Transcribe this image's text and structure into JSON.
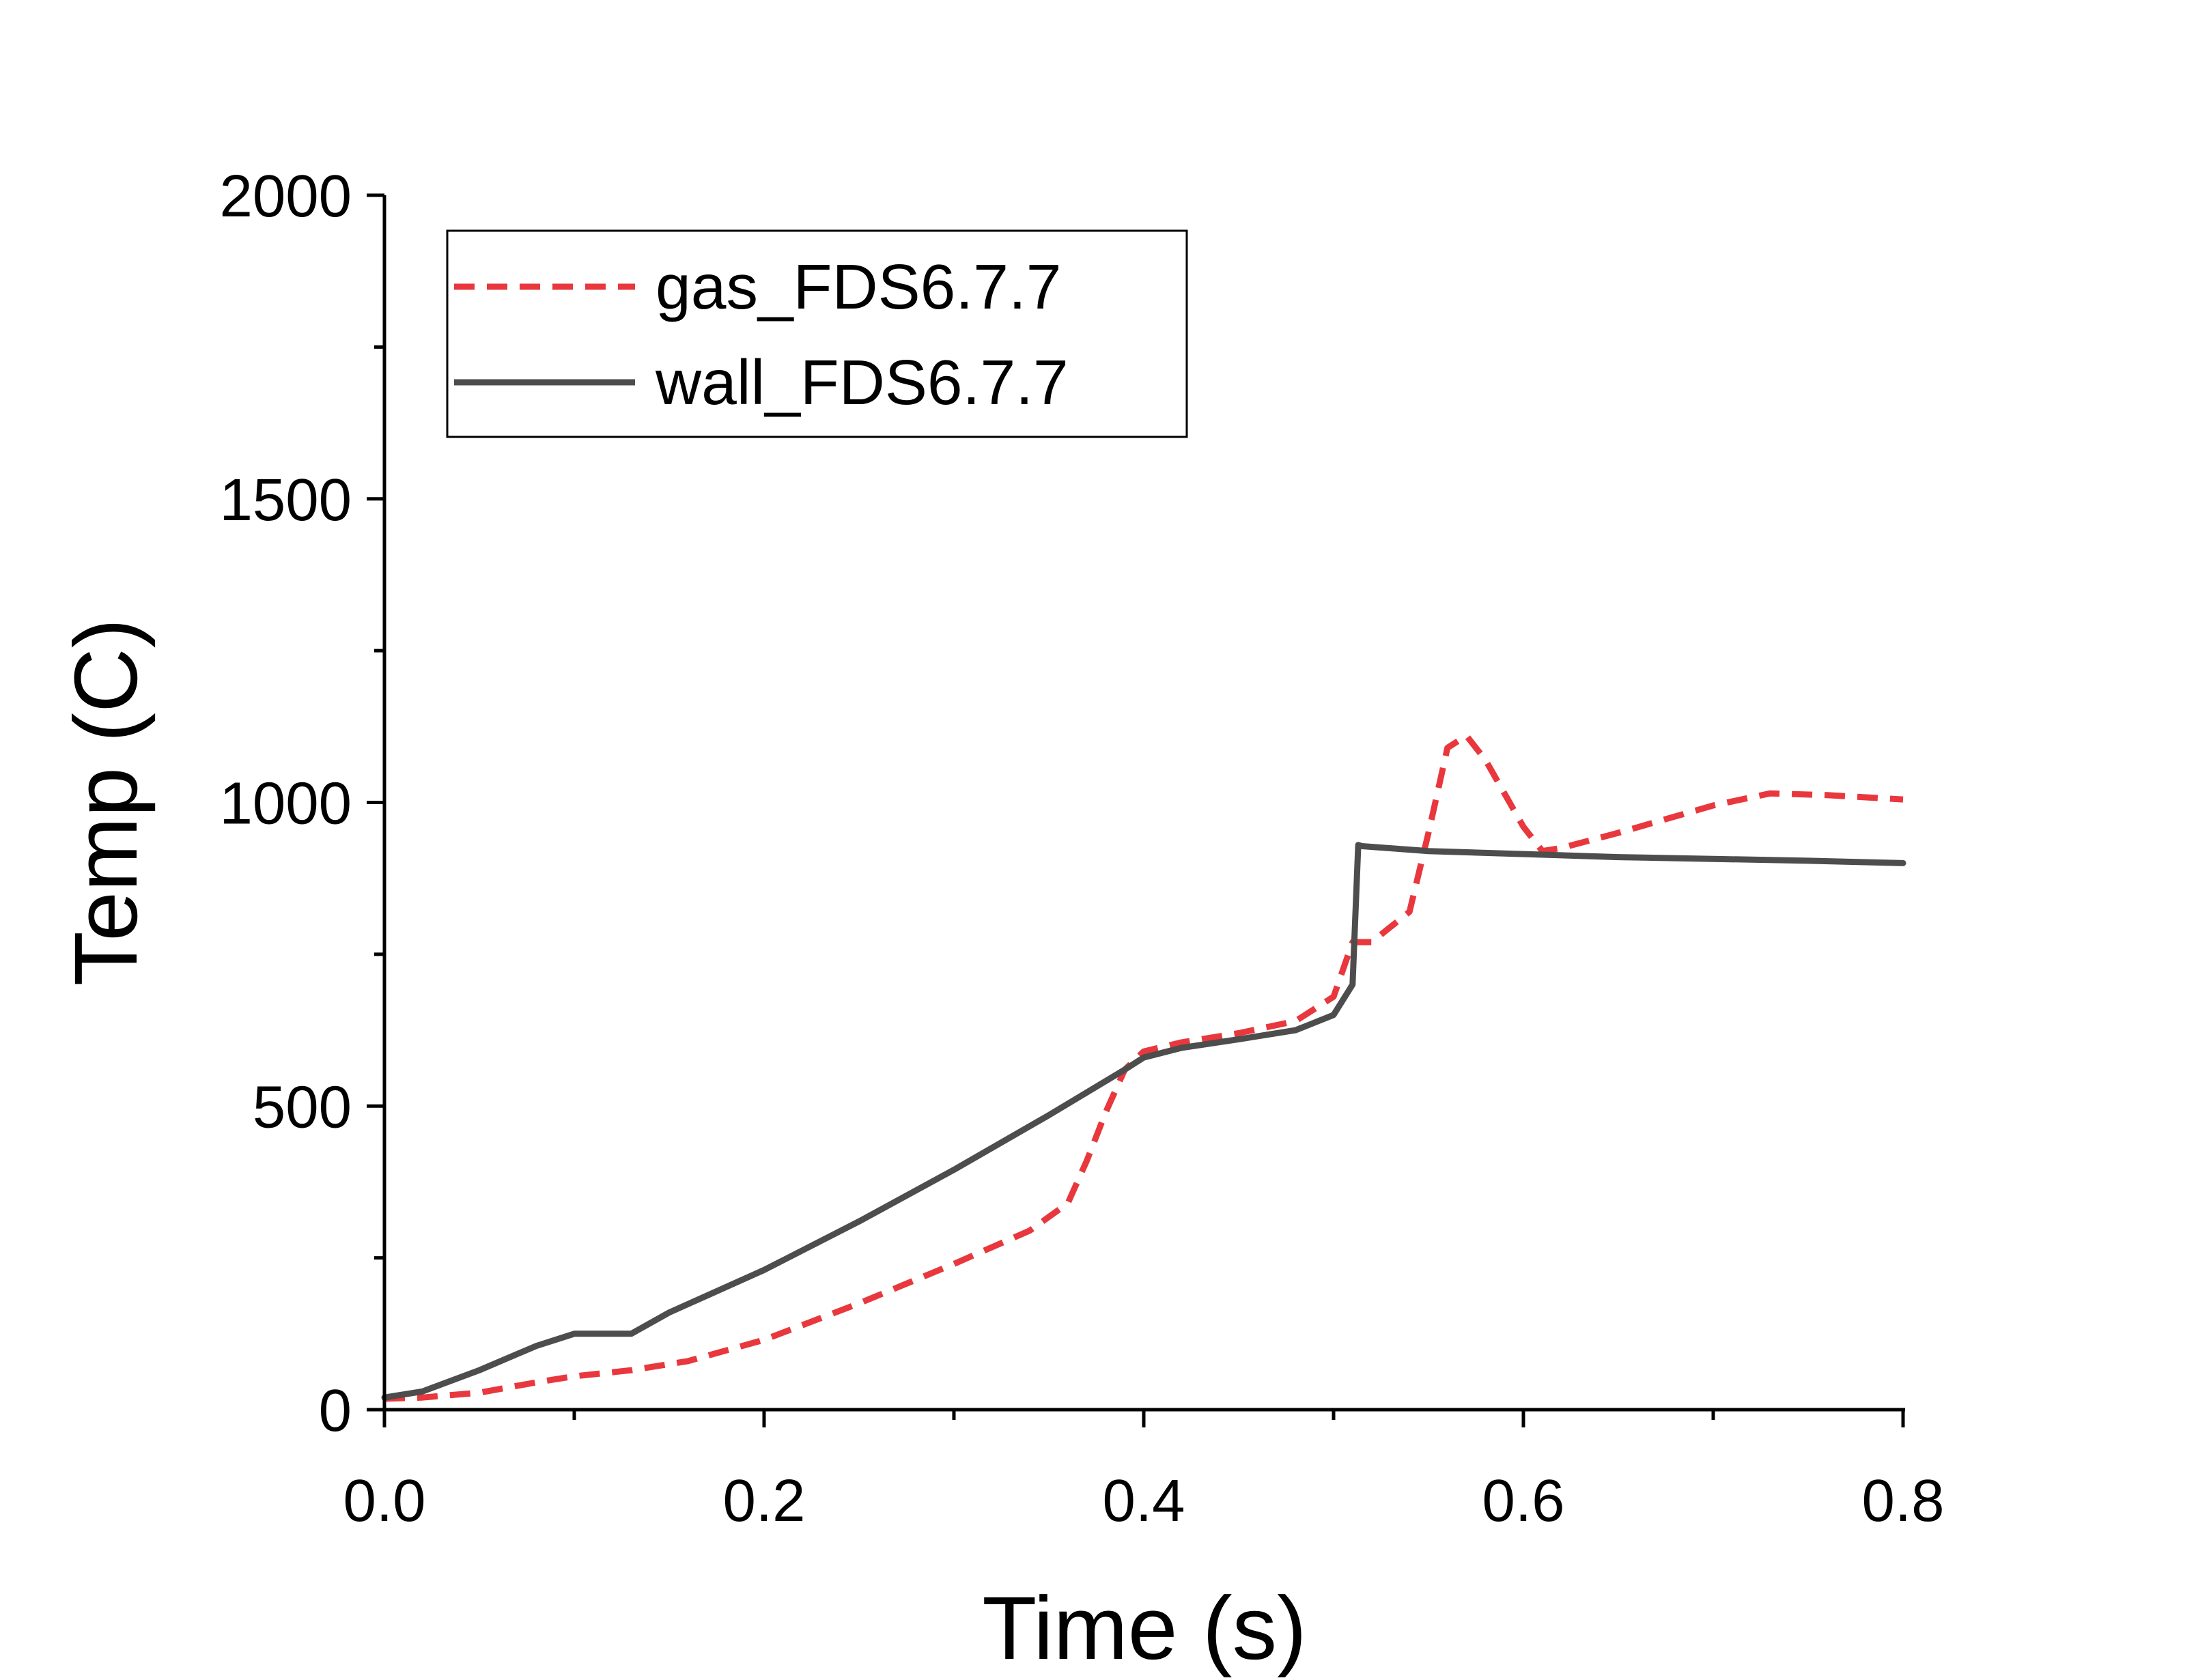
{
  "chart_data": {
    "type": "line",
    "xlabel": "Time (s)",
    "ylabel": "Temp (C)",
    "xlim": [
      0.0,
      0.8
    ],
    "ylim": [
      0,
      2000
    ],
    "x_ticks": [
      "0.0",
      "0.2",
      "0.4",
      "0.6",
      "0.8"
    ],
    "y_ticks": [
      "0",
      "500",
      "1000",
      "1500",
      "2000"
    ],
    "grid": false,
    "legend_position": "top-left",
    "series": [
      {
        "name": "gas_FDS6.7.7",
        "color": "#e8383d",
        "style": "dashed",
        "x": [
          0.0,
          0.02,
          0.05,
          0.08,
          0.1,
          0.13,
          0.16,
          0.2,
          0.25,
          0.3,
          0.34,
          0.36,
          0.37,
          0.38,
          0.39,
          0.4,
          0.42,
          0.45,
          0.48,
          0.5,
          0.51,
          0.52,
          0.54,
          0.55,
          0.56,
          0.57,
          0.58,
          0.6,
          0.61,
          0.62,
          0.65,
          0.7,
          0.73,
          0.76,
          0.8
        ],
        "y": [
          18,
          20,
          28,
          45,
          55,
          65,
          80,
          115,
          175,
          240,
          295,
          340,
          410,
          490,
          560,
          590,
          605,
          620,
          640,
          680,
          770,
          770,
          820,
          950,
          1090,
          1110,
          1070,
          960,
          920,
          925,
          950,
          995,
          1015,
          1012,
          1005
        ]
      },
      {
        "name": "wall_FDS6.7.7",
        "color": "#4d4d4d",
        "style": "solid",
        "x": [
          0.0,
          0.02,
          0.05,
          0.08,
          0.1,
          0.13,
          0.15,
          0.2,
          0.25,
          0.3,
          0.35,
          0.39,
          0.4,
          0.42,
          0.45,
          0.48,
          0.5,
          0.51,
          0.513,
          0.515,
          0.55,
          0.6,
          0.65,
          0.7,
          0.75,
          0.8
        ],
        "y": [
          20,
          30,
          65,
          105,
          125,
          125,
          160,
          230,
          310,
          395,
          485,
          560,
          580,
          596,
          610,
          625,
          650,
          700,
          930,
          928,
          920,
          915,
          910,
          907,
          904,
          900
        ]
      }
    ]
  }
}
